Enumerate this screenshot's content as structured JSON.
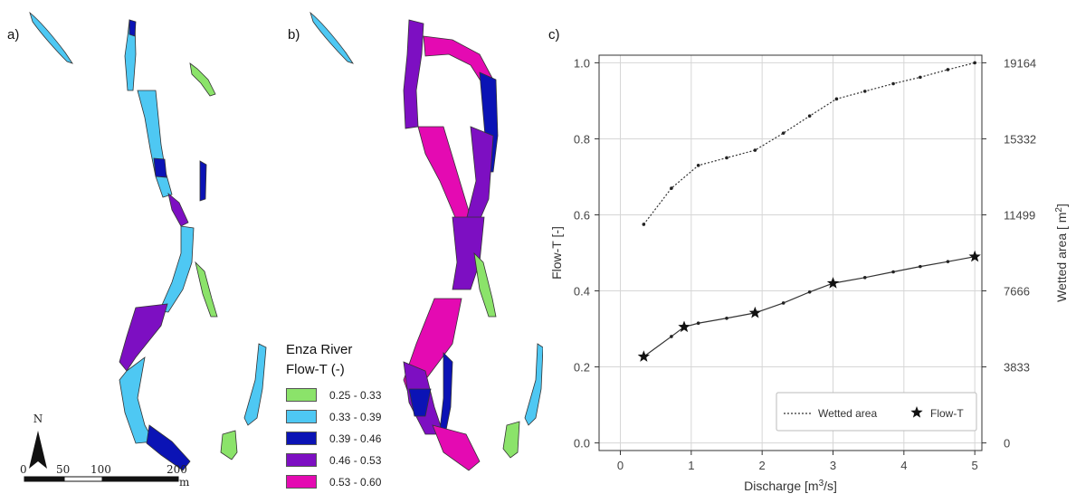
{
  "panels": {
    "a": "a)",
    "b": "b)",
    "c": "c)"
  },
  "legend": {
    "title_line1": "Enza River",
    "title_line2": "Flow-T (-)",
    "classes": [
      {
        "label": "0.25 - 0.33",
        "color": "#8be36a"
      },
      {
        "label": "0.33 - 0.39",
        "color": "#4ec8f3"
      },
      {
        "label": "0.39 - 0.46",
        "color": "#0b13b5"
      },
      {
        "label": "0.46 - 0.53",
        "color": "#7d0fc2"
      },
      {
        "label": "0.53 - 0.60",
        "color": "#e40ab2"
      }
    ]
  },
  "north_arrow": "N",
  "scale_bar": {
    "ticks": [
      "0",
      "50",
      "100",
      "200"
    ],
    "unit": "m"
  },
  "chart_data": {
    "type": "line",
    "xlabel_main": "Discharge [m",
    "xlabel_sup": "3",
    "xlabel_tail": "/s]",
    "ylabel_left": "Flow-T [-]",
    "ylabel_right_main": "Wetted area [ m",
    "ylabel_right_sup": "2",
    "ylabel_right_tail": "]",
    "xlim": [
      -0.3,
      5.1
    ],
    "ylim": [
      -0.02,
      1.02
    ],
    "x_ticks": [
      0,
      1,
      2,
      3,
      4,
      5
    ],
    "x_tick_labels": [
      "0",
      "1",
      "2",
      "3",
      "4",
      "5"
    ],
    "y_ticks": [
      0.0,
      0.2,
      0.4,
      0.6,
      0.8,
      1.0
    ],
    "y_tick_labels": [
      "0.0",
      "0.2",
      "0.4",
      "0.6",
      "0.8",
      "1.0"
    ],
    "y2_tick_labels": [
      "0",
      "3833",
      "7666",
      "11499",
      "15332",
      "19164"
    ],
    "grid": true,
    "legend_position": "lower-right",
    "series": [
      {
        "name": "Wetted area",
        "style": "dotted",
        "x": [
          0.33,
          0.72,
          1.1,
          1.5,
          1.9,
          2.3,
          2.67,
          3.05,
          3.45,
          3.85,
          4.23,
          4.62,
          5.0
        ],
        "y": [
          0.575,
          0.67,
          0.73,
          0.75,
          0.77,
          0.815,
          0.86,
          0.905,
          0.925,
          0.945,
          0.962,
          0.982,
          1.0
        ]
      },
      {
        "name": "Flow-T",
        "style": "solid",
        "x": [
          0.33,
          0.72,
          0.9,
          1.1,
          1.5,
          1.9,
          2.3,
          2.67,
          3.0,
          3.45,
          3.85,
          4.23,
          4.62,
          5.0
        ],
        "y": [
          0.227,
          0.28,
          0.305,
          0.315,
          0.328,
          0.342,
          0.368,
          0.397,
          0.42,
          0.435,
          0.45,
          0.464,
          0.477,
          0.49
        ],
        "star_x": [
          0.33,
          0.9,
          1.9,
          3.0,
          5.0
        ],
        "star_y": [
          0.227,
          0.305,
          0.342,
          0.42,
          0.49
        ]
      }
    ]
  }
}
